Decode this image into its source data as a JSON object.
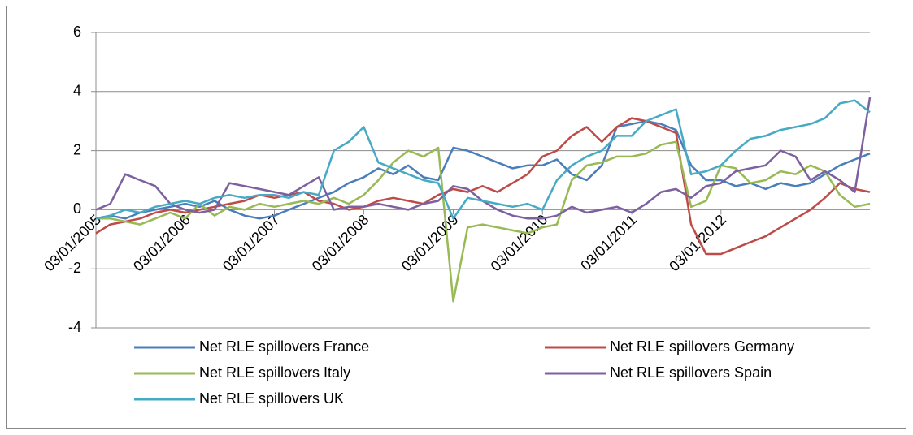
{
  "chart_data": {
    "type": "line",
    "x": [
      "03/01/2005",
      "03/03/2005",
      "03/05/2005",
      "03/07/2005",
      "03/09/2005",
      "03/11/2005",
      "03/01/2006",
      "03/03/2006",
      "03/05/2006",
      "03/07/2006",
      "03/09/2006",
      "03/11/2006",
      "03/01/2007",
      "03/03/2007",
      "03/05/2007",
      "03/07/2007",
      "03/09/2007",
      "03/11/2007",
      "03/01/2008",
      "03/03/2008",
      "03/05/2008",
      "03/07/2008",
      "03/09/2008",
      "03/11/2008",
      "03/01/2009",
      "03/03/2009",
      "03/05/2009",
      "03/07/2009",
      "03/09/2009",
      "03/11/2009",
      "03/01/2010",
      "03/03/2010",
      "03/05/2010",
      "03/07/2010",
      "03/09/2010",
      "03/11/2010",
      "03/01/2011",
      "03/03/2011",
      "03/05/2011",
      "03/07/2011",
      "03/09/2011",
      "03/11/2011",
      "03/01/2012",
      "03/03/2012",
      "03/05/2012",
      "03/07/2012",
      "03/09/2012",
      "03/11/2012",
      "03/01/2013",
      "03/03/2013",
      "03/05/2013",
      "03/07/2013",
      "03/09/2013"
    ],
    "series": [
      {
        "name": "Net RLE spillovers France",
        "color": "#4a7ebb",
        "values": [
          -0.3,
          -0.2,
          -0.3,
          -0.1,
          0,
          0.1,
          0.2,
          0.1,
          0.3,
          0,
          -0.2,
          -0.3,
          -0.2,
          0,
          0.2,
          0.4,
          0.6,
          0.9,
          1.1,
          1.4,
          1.2,
          1.5,
          1.1,
          1.0,
          2.1,
          2.0,
          1.8,
          1.6,
          1.4,
          1.5,
          1.5,
          1.7,
          1.2,
          1.0,
          1.5,
          2.8,
          2.9,
          3.0,
          2.9,
          2.7,
          1.5,
          1.0,
          1.0,
          0.8,
          0.9,
          0.7,
          0.9,
          0.8,
          0.9,
          1.2,
          1.5,
          1.7,
          1.9
        ]
      },
      {
        "name": "Net RLE spillovers Germany",
        "color": "#be4b48",
        "values": [
          -0.8,
          -0.5,
          -0.4,
          -0.3,
          -0.1,
          0,
          -0.1,
          0,
          0.1,
          0.2,
          0.3,
          0.5,
          0.4,
          0.5,
          0.6,
          0.3,
          0.2,
          0.0,
          0.1,
          0.3,
          0.4,
          0.3,
          0.2,
          0.5,
          0.7,
          0.6,
          0.8,
          0.6,
          0.9,
          1.2,
          1.8,
          2.0,
          2.5,
          2.8,
          2.3,
          2.8,
          3.1,
          3.0,
          2.8,
          2.6,
          -0.5,
          -1.5,
          -1.5,
          -1.3,
          -1.1,
          -0.9,
          -0.6,
          -0.3,
          0.0,
          0.4,
          0.9,
          0.7,
          0.6
        ]
      },
      {
        "name": "Net RLE spillovers  Italy",
        "color": "#98b954",
        "values": [
          -0.3,
          -0.3,
          -0.4,
          -0.5,
          -0.3,
          -0.1,
          -0.3,
          0.2,
          -0.2,
          0.1,
          0.0,
          0.2,
          0.1,
          0.2,
          0.3,
          0.2,
          0.4,
          0.2,
          0.5,
          1.0,
          1.6,
          2.0,
          1.8,
          2.1,
          -3.1,
          -0.6,
          -0.5,
          -0.6,
          -0.7,
          -0.8,
          -0.6,
          -0.5,
          1.0,
          1.5,
          1.6,
          1.8,
          1.8,
          1.9,
          2.2,
          2.3,
          0.1,
          0.3,
          1.5,
          1.4,
          0.9,
          1.0,
          1.3,
          1.2,
          1.5,
          1.3,
          0.5,
          0.1,
          0.2
        ]
      },
      {
        "name": "Net RLE spillovers  Spain",
        "color": "#7d60a0",
        "values": [
          0,
          0.2,
          1.2,
          1.0,
          0.8,
          0.2,
          0.0,
          -0.1,
          0.0,
          0.9,
          0.8,
          0.7,
          0.6,
          0.5,
          0.8,
          1.1,
          0.0,
          0.1,
          0.1,
          0.2,
          0.1,
          0.0,
          0.2,
          0.3,
          0.8,
          0.7,
          0.3,
          0.0,
          -0.2,
          -0.3,
          -0.3,
          -0.2,
          0.1,
          -0.1,
          0.0,
          0.1,
          -0.1,
          0.2,
          0.6,
          0.7,
          0.4,
          0.8,
          0.9,
          1.3,
          1.4,
          1.5,
          2.0,
          1.8,
          1.0,
          1.3,
          1.0,
          0.6,
          3.8
        ]
      },
      {
        "name": "Net RLE spillovers  UK",
        "color": "#46aac5",
        "values": [
          -0.3,
          -0.2,
          0,
          -0.1,
          0.1,
          0.2,
          0.3,
          0.2,
          0.4,
          0.5,
          0.4,
          0.5,
          0.5,
          0.4,
          0.6,
          0.5,
          2.0,
          2.3,
          2.8,
          1.6,
          1.4,
          1.2,
          1.0,
          0.9,
          -0.3,
          0.4,
          0.3,
          0.2,
          0.1,
          0.2,
          0.0,
          1.0,
          1.5,
          1.8,
          2.0,
          2.5,
          2.5,
          3.0,
          3.2,
          3.4,
          1.2,
          1.3,
          1.5,
          2.0,
          2.4,
          2.5,
          2.7,
          2.8,
          2.9,
          3.1,
          3.6,
          3.7,
          3.3
        ]
      }
    ],
    "xlim": [
      "03/01/2005",
      "03/09/2013"
    ],
    "xticks": [
      "03/01/2005",
      "03/01/2006",
      "03/01/2007",
      "03/01/2008",
      "03/01/2009",
      "03/01/2010",
      "03/01/2011",
      "03/01/2012"
    ],
    "ylim": [
      -4,
      6
    ],
    "yticks": [
      -4,
      -2,
      0,
      2,
      4,
      6
    ],
    "grid": true,
    "legend": "bottom"
  }
}
